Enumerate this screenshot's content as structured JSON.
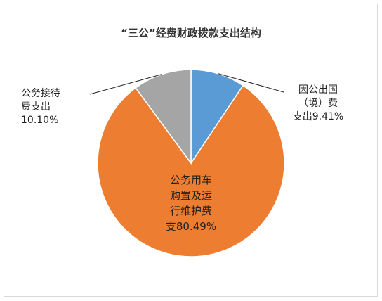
{
  "chart_data": {
    "type": "pie",
    "title": "“三公”经费财政拨款支出结构",
    "slices": [
      {
        "label_lines": [
          "因公出国",
          "（境）费",
          "支出9.41%"
        ],
        "value": 9.41,
        "color": "#5b9bd5"
      },
      {
        "label_lines": [
          "公务用车",
          "购置及运",
          "行维护费",
          "支80.49%"
        ],
        "value": 80.49,
        "color": "#ed7d31"
      },
      {
        "label_lines": [
          "公务接待",
          "费支出",
          "10.10%"
        ],
        "value": 10.1,
        "color": "#a5a5a5"
      }
    ]
  }
}
